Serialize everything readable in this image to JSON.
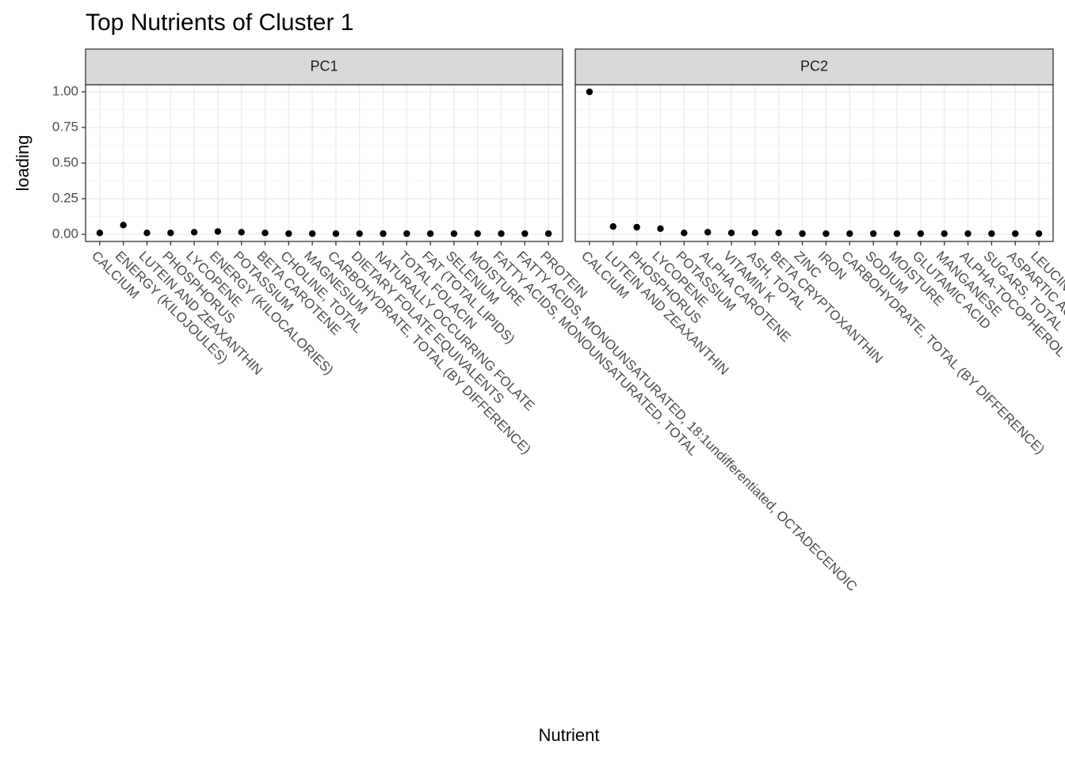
{
  "chart_data": {
    "type": "point",
    "title": "Top Nutrients of Cluster 1",
    "xlabel": "Nutrient",
    "ylabel": "loading",
    "ylim": [
      -0.05,
      1.05
    ],
    "yticks": [
      {
        "value": 0,
        "label": "0.00"
      },
      {
        "value": 0.25,
        "label": "0.25"
      },
      {
        "value": 0.5,
        "label": "0.50"
      },
      {
        "value": 0.75,
        "label": "0.75"
      },
      {
        "value": 1,
        "label": "1.00"
      }
    ],
    "grid": true,
    "color": "#000000",
    "facets": [
      {
        "name": "PC1",
        "categories": [
          "CALCIUM",
          "ENERGY (KILOJOULES)",
          "LUTEIN AND ZEAXANTHIN",
          "PHOSPHORUS",
          "LYCOPENE",
          "ENERGY (KILOCALORIES)",
          "POTASSIUM",
          "BETA CAROTENE",
          "CHOLINE, TOTAL",
          "MAGNESIUM",
          "CARBOHYDRATE, TOTAL (BY DIFFERENCE)",
          "DIETARY FOLATE EQUIVALENTS",
          "NATURALLY OCCURRING FOLATE",
          "TOTAL FOLACIN",
          "FAT (TOTAL LIPIDS)",
          "SELENIUM",
          "MOISTURE",
          "FATTY ACIDS, MONOUNSATURATED, TOTAL",
          "FATTY ACIDS, MONOUNSATURATED, 18:1undifferentiated, OCTADECENOIC",
          "PROTEIN"
        ],
        "values": [
          0.01,
          0.065,
          0.01,
          0.01,
          0.015,
          0.02,
          0.015,
          0.01,
          0.005,
          0.005,
          0.005,
          0.005,
          0.005,
          0.005,
          0.005,
          0.005,
          0.005,
          0.005,
          0.005,
          0.005
        ]
      },
      {
        "name": "PC2",
        "categories": [
          "CALCIUM",
          "LUTEIN AND ZEAXANTHIN",
          "PHOSPHORUS",
          "LYCOPENE",
          "POTASSIUM",
          "ALPHA CAROTENE",
          "VITAMIN K",
          "ASH, TOTAL",
          "BETA CRYPTOXANTHIN",
          "ZINC",
          "IRON",
          "CARBOHYDRATE, TOTAL (BY DIFFERENCE)",
          "SODIUM",
          "MOISTURE",
          "GLUTAMIC ACID",
          "MANGANESE",
          "ALPHA-TOCOPHEROL",
          "SUGARS, TOTAL",
          "ASPARTIC ACID",
          "LEUCINE"
        ],
        "values": [
          1.0,
          0.055,
          0.05,
          0.04,
          0.01,
          0.015,
          0.01,
          0.01,
          0.01,
          0.005,
          0.005,
          0.005,
          0.005,
          0.005,
          0.005,
          0.005,
          0.005,
          0.005,
          0.005,
          0.005
        ]
      }
    ]
  }
}
